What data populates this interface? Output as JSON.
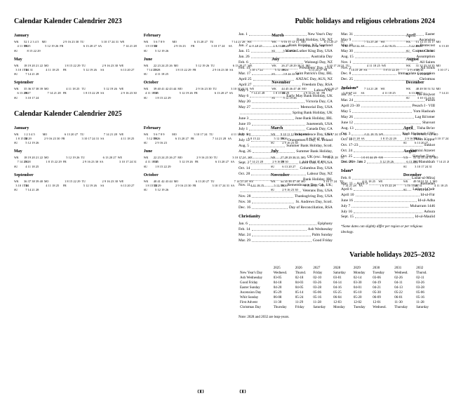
{
  "left": {
    "title2023": "Calendar  Kalender  Calendrier 2023",
    "title2025": "Calendar  Kalender  Calendrier 2025",
    "dayLabels": [
      "WK",
      "MO",
      "TU",
      "WE",
      "TH",
      "FR",
      "SA",
      "SU"
    ],
    "months2023": [
      {
        "name": "January",
        "head": "52 1 2 3 4 5",
        "rows": [
          "    2 9 16 23 30",
          "    3 10 17 24 31",
          "    4 11 18 25",
          "    5 12 19 26",
          "    6 13 20 27",
          "    7 14 21 28",
          "    8 15 22 29"
        ]
      },
      {
        "name": "February",
        "head": "5 6 7 8 9",
        "rows": [
          "    6 13 20 27",
          "    7 14 21 28",
          "  1 8 15 22",
          "  2 9 16 23",
          "  3 10 17 24",
          "  4 11 18 25",
          "  5 12 19 26"
        ]
      },
      {
        "name": "March",
        "head": "9 10 11 12 13",
        "rows": [
          "    6 13 20 27",
          "    7 14 21 28",
          "  1 8 15 22 29",
          "  2 9 16 23 30",
          "  3 10 17 24 31",
          "  4 11 18 25",
          "  5 12 19 26"
        ]
      },
      {
        "name": "April",
        "head": "13 14 15 16 17",
        "rows": [
          "    3 10 17 24",
          "    4 11 18 25",
          "    5 12 19 26",
          "    6 13 20 27",
          "    7 14 21 28",
          "  1 8 15 22 29",
          "  2 9 16 23 30"
        ]
      },
      {
        "name": "May",
        "head": "18 19 20 21 22",
        "rows": [
          "  1 8 15 22 29",
          "  2 9 16 23 30",
          "  3 10 17 24 31",
          "  4 11 18 25",
          "  5 12 19 26",
          "  6 13 20 27",
          "  7 14 21 28"
        ]
      },
      {
        "name": "June",
        "head": "22 23 24 25 26",
        "rows": [
          "    5 12 19 26",
          "    6 13 20 27",
          "    7 14 21 28",
          "  1 8 15 22 29",
          "  2 9 16 23 30",
          "  3 10 17 24",
          "  4 11 18 25"
        ]
      },
      {
        "name": "July",
        "head": "26 27 28 29 30 31",
        "rows": [
          "    3 10 17 24 31",
          "    4 11 18 25",
          "    5 12 19 26",
          "    6 13 20 27",
          "    7 14 21 28",
          "  1 8 15 22 29",
          "  2 9 16 23 30"
        ]
      },
      {
        "name": "August",
        "head": "31 32 33 34 35",
        "rows": [
          "    7 14 21 28",
          "  1 8 15 22 29",
          "  2 9 16 23 30",
          "  3 10 17 24 31",
          "  4 11 18 25",
          "  5 12 19 26",
          "  6 13 20 27"
        ]
      },
      {
        "name": "September",
        "head": "35 36 37 38 39",
        "rows": [
          "    4 11 18 25",
          "    5 12 19 26",
          "    6 13 20 27",
          "    7 14 21 28",
          "  1 8 15 22 29",
          "  2 9 16 23 30",
          "  3 10 17 24"
        ]
      },
      {
        "name": "October",
        "head": "39 40 41 42 43 44",
        "rows": [
          "  2 9 16 23 30",
          "  3 10 17 24 31",
          "  4 11 18 25",
          "  5 12 19 26",
          "  6 13 20 27",
          "  7 14 21 28",
          "  1 8 15 22 29"
        ]
      },
      {
        "name": "November",
        "head": "44 45 46 47 48",
        "rows": [
          "    6 13 20 27",
          "    7 14 21 28",
          "  1 8 15 22 29",
          "  2 9 16 23 30",
          "  3 10 17 24",
          "  4 11 18 25",
          "  5 12 19 26"
        ]
      },
      {
        "name": "December",
        "head": "48 49 50 51 52",
        "rows": [
          "    4 11 18 25",
          "    5 12 19 26",
          "    6 13 20 27",
          "    7 14 21 28",
          "  1 8 15 22 29",
          "  2 9 16 23 30",
          "  3 10 17 24 31"
        ]
      }
    ],
    "months2025": [
      {
        "name": "January",
        "head": "1 2 3 4 5",
        "rows": [
          "    6 13 20 27",
          "    7 14 21 28",
          "  1 8 15 22 29",
          "  2 9 16 23 30",
          "  3 10 17 24 31",
          "  4 11 18 25",
          "  5 12 19 26"
        ]
      },
      {
        "name": "February",
        "head": "5 6 7 8 9",
        "rows": [
          "    3 10 17 24",
          "    4 11 18 25",
          "    5 12 19 26",
          "    6 13 20 27",
          "    7 14 21 28",
          "  1 8 15 22",
          "  2 9 16 23"
        ]
      },
      {
        "name": "March",
        "head": "9 10 11 12 13 14",
        "rows": [
          "    3 10 17 24 31",
          "    4 11 18 25",
          "    5 12 19 26",
          "    6 13 20 27",
          "    7 14 21 28",
          "  1 8 15 22 29",
          "  2 9 16 23 30"
        ]
      },
      {
        "name": "April",
        "head": "14 15 16 17 18",
        "rows": [
          "    7 14 21 28",
          "  1 8 15 22 29",
          "  2 9 16 23 30",
          "  3 10 17 24",
          "  4 11 18 25",
          "  5 12 19 26",
          "  6 13 20 27"
        ]
      },
      {
        "name": "May",
        "head": "18 19 20 21 22",
        "rows": [
          "    5 12 19 26",
          "    6 13 20 27",
          "    7 14 21 28",
          "  1 8 15 22 29",
          "  2 9 16 23 30",
          "  3 10 17 24 31",
          "  4 11 18 25"
        ]
      },
      {
        "name": "June",
        "head": "22 23 24 25 26 27",
        "rows": [
          "  2 9 16 23 30",
          "  3 10 17 24",
          "  4 11 18 25",
          "  5 12 19 26",
          "  6 13 20 27",
          "  7 14 21 28",
          "  1 8 15 22 29"
        ]
      },
      {
        "name": "July",
        "head": "27 28 29 30 31",
        "rows": [
          "    7 14 21 28",
          "  1 8 15 22 29",
          "  2 9 16 23 30",
          "  3 10 17 24 31",
          "  4 11 18 25",
          "  5 12 19 26",
          "  6 13 20 27"
        ]
      },
      {
        "name": "August",
        "head": "31 32 33 34 35",
        "rows": [
          "    4 11 18 25",
          "    5 12 19 26",
          "    6 13 20 27",
          "    7 14 21 28",
          "  1 8 15 22 29",
          "  2 9 16 23 30",
          "  3 10 17 24 31"
        ]
      },
      {
        "name": "September",
        "head": "36 37 38 39 40",
        "rows": [
          "  1 8 15 22 29",
          "  2 9 16 23 30",
          "  3 10 17 24",
          "  4 11 18 25",
          "  5 12 19 26",
          "  6 13 20 27",
          "  7 14 21 28"
        ]
      },
      {
        "name": "October",
        "head": "40 41 42 43 44",
        "rows": [
          "    6 13 20 27",
          "    7 14 21 28",
          "  1 8 15 22 29",
          "  2 9 16 23 30",
          "  3 10 17 24 31",
          "  4 11 18 25",
          "  5 12 19 26"
        ]
      },
      {
        "name": "November",
        "head": "44 45 46 47 48",
        "rows": [
          "    3 10 17 24",
          "    4 11 18 25",
          "    5 12 19 26",
          "    6 13 20 27",
          "    7 14 21 28",
          "  1 8 15 22 29",
          "  2 9 16 23 30"
        ]
      },
      {
        "name": "December",
        "head": "49 50 51 52  1",
        "rows": [
          "  1 8 15 22 29",
          "  2 9 16 23 30",
          "  3 10 17 24 31",
          "  4 11 18 25",
          "  5 12 19 26",
          "  6 13 20 27",
          "  7 14 21 28"
        ]
      }
    ]
  },
  "right": {
    "title": "Public holidays and religious celebrations 2024",
    "col1": [
      {
        "d": "Jan. 1",
        "n": "New Year's Day"
      },
      {
        "d": "",
        "n": "Bank Holiday, UK, NZ"
      },
      {
        "d": "Jan. 2",
        "n": "Bank Holiday, NZ, Scotland"
      },
      {
        "d": "Jan. 15",
        "n": "Martin Luther King Day, USA"
      },
      {
        "d": "Jan. 26",
        "n": "Australia Day"
      },
      {
        "d": "Feb. 6",
        "n": "Waitangi Day, NZ"
      },
      {
        "d": "Feb. 19",
        "n": "Presidents' Day, USA"
      },
      {
        "d": "Mar. 17",
        "n": "Saint Patrick's Day, IRL"
      },
      {
        "d": "April 25",
        "n": "ANZAC Day, AUS, NZ"
      },
      {
        "d": "April 27",
        "n": "Freedom Day, RSA"
      },
      {
        "d": "May 1",
        "n": "Labour Day"
      },
      {
        "d": "May 6",
        "n": "Early May Bank Holiday, UK"
      },
      {
        "d": "May 20",
        "n": "Victoria Day, CA"
      },
      {
        "d": "May 27",
        "n": "Memorial Day, USA"
      },
      {
        "d": "",
        "n": "Spring Bank Holiday, UK"
      },
      {
        "d": "June 3",
        "n": "June Bank Holiday, IRL"
      },
      {
        "d": "June 19",
        "n": "Juneteenth, USA"
      },
      {
        "d": "July 1",
        "n": "Canada Day, CA"
      },
      {
        "d": "July 4",
        "n": "Independence Day, USA"
      },
      {
        "d": "July 12",
        "n": "Orangemen's Day, N. Ireland"
      },
      {
        "d": "Aug. 5",
        "n": "Summer Bank Holiday, Scotl."
      },
      {
        "d": "Aug. 26",
        "n": "Summer Bank Holiday,"
      },
      {
        "d": "",
        "n": "UK (exc. Scotl.)"
      },
      {
        "d": "Sept. 2",
        "n": "Labor Day, CA, USA"
      },
      {
        "d": "Oct. 14",
        "n": "Columbus Day, USA"
      },
      {
        "d": "Oct. 28",
        "n": "Labour Day, NZ"
      },
      {
        "d": "",
        "n": "Bank Holiday, IRL"
      },
      {
        "d": "Nov. 11",
        "n": "Remembrance Day, CA, UK;"
      },
      {
        "d": "",
        "n": "Veterans Day, USA"
      },
      {
        "d": "Nov. 28",
        "n": "Thanksgiving Day, USA"
      },
      {
        "d": "Nov. 30",
        "n": "St. Andrews Day, Scotl."
      },
      {
        "d": "Dec. 16",
        "n": "Day of Reconciliation, RSA"
      }
    ],
    "christianity_head": "Christianity",
    "christianity": [
      {
        "d": "Jan. 6",
        "n": "Epiphany"
      },
      {
        "d": "Feb. 14",
        "n": "Ash Wednesday"
      },
      {
        "d": "Mar. 24",
        "n": "Palm Sunday"
      },
      {
        "d": "Mar. 29",
        "n": "Good Friday"
      }
    ],
    "col2": [
      {
        "d": "Mar. 31",
        "n": "Easter"
      },
      {
        "d": "May 9",
        "n": "Ascension"
      },
      {
        "d": "May 19",
        "n": "Pentecost"
      },
      {
        "d": "May 30",
        "n": "Corpus Christi"
      },
      {
        "d": "Aug. 15",
        "n": "Assumption"
      },
      {
        "d": "Nov. 1",
        "n": "All Saints"
      },
      {
        "d": "Nov. 2",
        "n": "All Souls"
      },
      {
        "d": "Dec. 8",
        "n": "Immaculate Conception"
      },
      {
        "d": "Dec. 25",
        "n": "Christmas"
      }
    ],
    "judaism_head": "Judaism*",
    "judaism": [
      {
        "d": "Jan. 25",
        "n": "Toe Bisjwat"
      },
      {
        "d": "Mar. 24",
        "n": "Purim"
      },
      {
        "d": "April 23–30",
        "n": "Pesach I - VIII"
      },
      {
        "d": "May 5",
        "n": "Yom Hashoah"
      },
      {
        "d": "May 26",
        "n": "Lag Bá'omer"
      },
      {
        "d": "June 12",
        "n": "Shavuot"
      },
      {
        "d": "Aug. 13",
        "n": "Tisha Be'av"
      },
      {
        "d": "Oct. 3",
        "n": "Rosh Hashanah 5785"
      },
      {
        "d": "Oct. 12",
        "n": "Yom Kippur"
      },
      {
        "d": "Oct. 17–23",
        "n": "Sukkot"
      },
      {
        "d": "Oct. 24",
        "n": "Shemini Atzeret"
      },
      {
        "d": "Oct. 25",
        "n": "Simchat Torah"
      },
      {
        "d": "Dec. 26 – Jan. 2",
        "n": "Hanukkah"
      }
    ],
    "islam_head": "Islam*",
    "islam": [
      {
        "d": "Feb. 8",
        "n": "Lailat-ul-Miraj"
      },
      {
        "d": "Mar. 11 – April 9",
        "n": "Ramadan"
      },
      {
        "d": "April 6",
        "n": "Lailat-ul-Qadr"
      },
      {
        "d": "April 10",
        "n": "Id-ul-Fitr"
      },
      {
        "d": "June 16",
        "n": "Id-ul-Adha"
      },
      {
        "d": "July 7",
        "n": "Muharram 1446"
      },
      {
        "d": "July 16",
        "n": "Ashura"
      },
      {
        "d": "Sept. 15",
        "n": "Id-ul-Maulid"
      }
    ],
    "footnote": "*Some dates can slightly differ per region or per religious ideology.",
    "vartitle": "Variable holidays 2025–2032",
    "varhead": [
      "",
      "2025",
      "2026",
      "2027",
      "2028",
      "2029",
      "2030",
      "2031",
      "2032"
    ],
    "varrows": [
      [
        "New Year's Day",
        "Wednesd.",
        "Thursd.",
        "Friday",
        "Saturday",
        "Monday",
        "Tuesday",
        "Wednesd.",
        "Thursd."
      ],
      [
        "Ash Wednesday",
        "03-05",
        "02-18",
        "02-10",
        "03-01",
        "02-14",
        "03-06",
        "02-26",
        "02-11"
      ],
      [
        "Good Friday",
        "04-18",
        "04-03",
        "03-26",
        "04-14",
        "03-30",
        "04-19",
        "04-11",
        "03-26"
      ],
      [
        "Easter Sunday",
        "04-20",
        "04-05",
        "03-28",
        "04-16",
        "04-01",
        "04-21",
        "04-13",
        "03-28"
      ],
      [
        "Ascension Day",
        "05-29",
        "05-14",
        "05-06",
        "05-25",
        "05-10",
        "05-30",
        "05-22",
        "05-06"
      ],
      [
        "Whit Sunday",
        "06-08",
        "05-24",
        "05-16",
        "06-04",
        "05-20",
        "06-09",
        "06-01",
        "05-16"
      ],
      [
        "First Advent",
        "11-30",
        "11-29",
        "11-28",
        "12-03",
        "12-02",
        "12-01",
        "11-30",
        "11-28"
      ],
      [
        "Christmas Day",
        "Thursday",
        "Friday",
        "Saturday",
        "Monday",
        "Tuesday",
        "Wednesd.",
        "Thursday",
        "Saturday"
      ]
    ],
    "leapnote": "Note: 2028 and 2032 are leap-years."
  }
}
